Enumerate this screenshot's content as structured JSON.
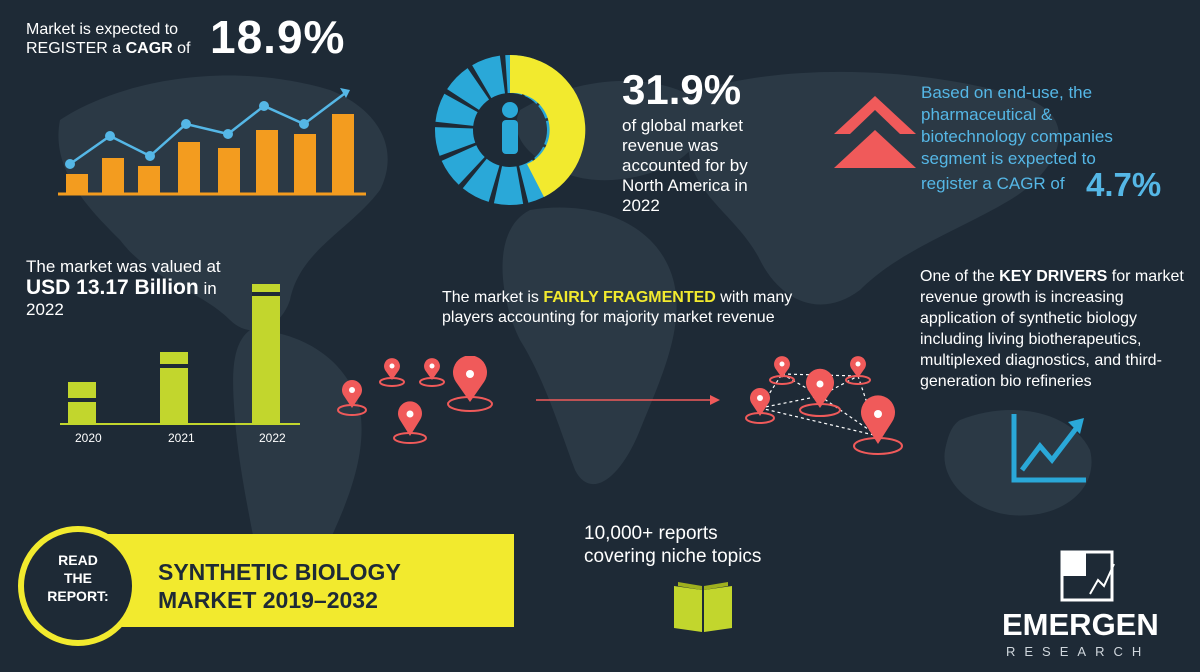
{
  "cagr": {
    "intro_line1": "Market is expected to",
    "intro_line2_pre": "REGISTER a ",
    "intro_line2_bold": "CAGR",
    "intro_line2_post": " of",
    "value": "18.9%"
  },
  "north_america": {
    "value": "31.9%",
    "desc_lines": [
      "of global market",
      "revenue was",
      "accounted for by",
      "North America in",
      "2022"
    ],
    "share": 0.319
  },
  "end_use": {
    "lines": [
      "Based on end-use, the",
      "pharmaceutical &",
      "biotechnology companies",
      "segment is expected to"
    ],
    "line_last": "register a CAGR of",
    "value": "4.7%"
  },
  "valuation": {
    "line1": "The market was valued at",
    "amount": "USD 13.17 Billion",
    "in_word": " in",
    "year": "2022",
    "years": [
      "2020",
      "2021",
      "2022"
    ]
  },
  "fragmented": {
    "pre": "The market is ",
    "highlight": "FAIRLY FRAGMENTED",
    "post": " with many players accounting for majority market revenue"
  },
  "drivers": {
    "pre": "One of the ",
    "bold": "KEY DRIVERS",
    "post": " for market revenue growth is increasing application of synthetic biology including living biotherapeutics, multiplexed diagnostics, and third-generation bio refineries"
  },
  "report": {
    "read_lines": [
      "READ",
      "THE",
      "REPORT:"
    ],
    "title_line1": "SYNTHETIC BIOLOGY",
    "title_line2": "MARKET 2019–2032"
  },
  "reports_count": {
    "line1": "10,000+ reports",
    "line2": "covering niche topics"
  },
  "logo": {
    "name": "EMERGEN",
    "sub": "RESEARCH"
  },
  "colors": {
    "background": "#1e2a36",
    "yellow": "#f2ea2e",
    "orange": "#f39c1f",
    "blue": "#55b7e6",
    "cyan": "#2aa8d8",
    "red": "#f05a5a",
    "lime": "#c2d62d"
  }
}
